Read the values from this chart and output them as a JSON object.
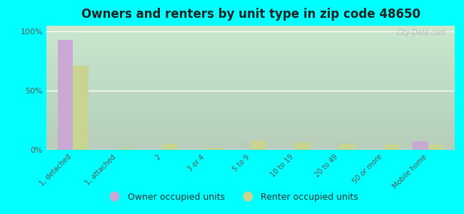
{
  "title": "Owners and renters by unit type in zip code 48650",
  "categories": [
    "1, detached",
    "1, attached",
    "2",
    "3 or 4",
    "5 to 9",
    "10 to 19",
    "20 to 49",
    "50 or more",
    "Mobile home"
  ],
  "owner_values": [
    93,
    0,
    0,
    0,
    0,
    0,
    0,
    0,
    7
  ],
  "renter_values": [
    71,
    1,
    5,
    2,
    8,
    6,
    5,
    4,
    4
  ],
  "owner_color": "#c9a8d4",
  "renter_color": "#c8d490",
  "background_color": "#00ffff",
  "yticks": [
    0,
    50,
    100
  ],
  "ylim": [
    0,
    105
  ],
  "bar_width": 0.35,
  "watermark": "City-Data.com",
  "legend_owner": "Owner occupied units",
  "legend_renter": "Renter occupied units"
}
